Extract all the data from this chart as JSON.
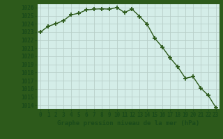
{
  "x": [
    0,
    1,
    2,
    3,
    4,
    5,
    6,
    7,
    8,
    9,
    10,
    11,
    12,
    13,
    14,
    15,
    16,
    17,
    18,
    19,
    20,
    21,
    22,
    23
  ],
  "y": [
    1023.0,
    1023.7,
    1024.0,
    1024.4,
    1025.1,
    1025.3,
    1025.7,
    1025.8,
    1025.85,
    1025.8,
    1026.0,
    1025.4,
    1025.8,
    1024.9,
    1023.9,
    1022.2,
    1021.1,
    1019.8,
    1018.7,
    1017.3,
    1017.5,
    1016.1,
    1015.2,
    1013.7
  ],
  "title": "Graphe pression niveau de la mer (hPa)",
  "ylim": [
    1013.5,
    1026.5
  ],
  "xlim": [
    -0.5,
    23.5
  ],
  "yticks": [
    1014,
    1015,
    1016,
    1017,
    1018,
    1019,
    1020,
    1021,
    1022,
    1023,
    1024,
    1025,
    1026
  ],
  "xticks": [
    0,
    1,
    2,
    3,
    4,
    5,
    6,
    7,
    8,
    9,
    10,
    11,
    12,
    13,
    14,
    15,
    16,
    17,
    18,
    19,
    20,
    21,
    22,
    23
  ],
  "line_color": "#2d5a1b",
  "marker": "+",
  "bg_color": "#d4ede8",
  "grid_color": "#b8cfc8",
  "title_color": "#1a4a1a",
  "tick_color": "#1a4a1a",
  "outer_bg": "#2d5a1b",
  "spine_color": "#2d5a1b"
}
